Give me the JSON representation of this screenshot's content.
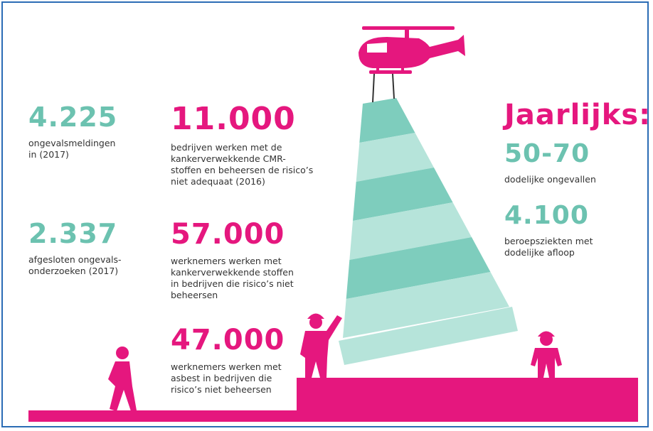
{
  "heading": "Jaarlijks:",
  "stats": [
    {
      "value": "4.225",
      "label": [
        "ongevalsmeldingen",
        "in (2017)"
      ]
    },
    {
      "value": "2.337",
      "label": [
        "afgesloten ongevals-",
        "onderzoeken (2017)"
      ]
    },
    {
      "value": "11.000",
      "label": [
        "bedrijven werken met de",
        "kankerverwekkende CMR-",
        "stoffen en beheersen de risico’s",
        "niet adequaat (2016)"
      ]
    },
    {
      "value": "57.000",
      "label": [
        "werknemers werken met",
        "kankerverwekkende stoffen",
        "in bedrijven die risico’s niet",
        "beheersen"
      ]
    },
    {
      "value": "47.000",
      "label": [
        "werknemers werken met",
        "asbest in bedrijven die",
        "risico’s niet beheersen"
      ]
    },
    {
      "value": "50-70",
      "label": [
        "dodelijke ongevallen"
      ]
    },
    {
      "value": "4.100",
      "label": [
        "beroepsziekten met",
        "dodelijke afloop"
      ]
    }
  ]
}
